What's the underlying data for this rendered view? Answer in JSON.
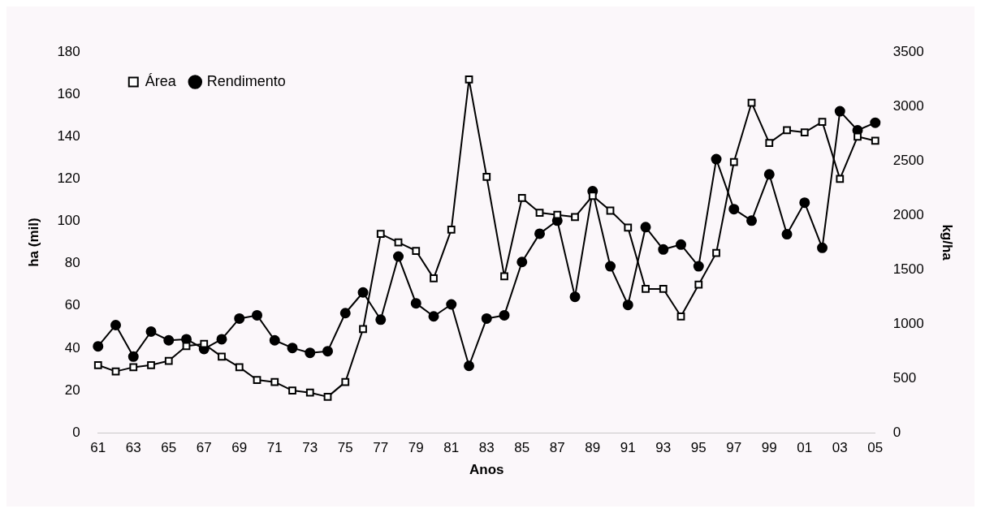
{
  "chart_data": {
    "type": "line",
    "xlabel": "Anos",
    "ylabel": "ha (mil)",
    "y2label": "kg/ha",
    "categories": [
      "61",
      null,
      "63",
      null,
      "65",
      null,
      "67",
      null,
      "69",
      null,
      "71",
      null,
      "73",
      null,
      "75",
      null,
      "77",
      null,
      "79",
      null,
      "81",
      null,
      "83",
      null,
      "85",
      null,
      "87",
      null,
      "89",
      null,
      "91",
      null,
      "93",
      null,
      "95",
      null,
      "97",
      null,
      "99",
      null,
      "01",
      null,
      "03",
      null,
      "05"
    ],
    "series": [
      {
        "name": "Área",
        "color": "#000000",
        "marker": "square",
        "values": [
          32,
          29,
          31,
          32,
          34,
          41,
          42,
          36,
          31,
          25,
          24,
          20,
          19,
          17,
          24,
          49,
          94,
          90,
          86,
          73,
          96,
          167,
          121,
          74,
          111,
          104,
          103,
          102,
          112,
          105,
          97,
          68,
          68,
          55,
          70,
          85,
          128,
          156,
          137,
          143,
          142,
          147,
          120,
          140,
          138
        ]
      },
      {
        "name": "Rendimento",
        "color": "#000000",
        "marker": "circle",
        "axis": "y2",
        "values": [
          795,
          990,
          700,
          930,
          850,
          860,
          770,
          860,
          1050,
          1080,
          850,
          780,
          735,
          750,
          1100,
          1290,
          1040,
          1620,
          1190,
          1070,
          1180,
          615,
          1050,
          1080,
          1570,
          1830,
          1950,
          1250,
          2220,
          1530,
          1175,
          1890,
          1685,
          1730,
          1530,
          2515,
          2055,
          1950,
          2375,
          1825,
          2115,
          1700,
          2955,
          2780,
          2850
        ]
      }
    ],
    "ylim": [
      0,
      180
    ],
    "yticks": [
      0,
      20,
      40,
      60,
      80,
      100,
      120,
      140,
      160,
      180
    ],
    "y2lim": [
      0,
      3500
    ],
    "y2ticks": [
      0,
      500,
      1000,
      1500,
      2000,
      2500,
      3000,
      3500
    ],
    "legend": "top left",
    "grid": false,
    "line_style": "solid"
  }
}
